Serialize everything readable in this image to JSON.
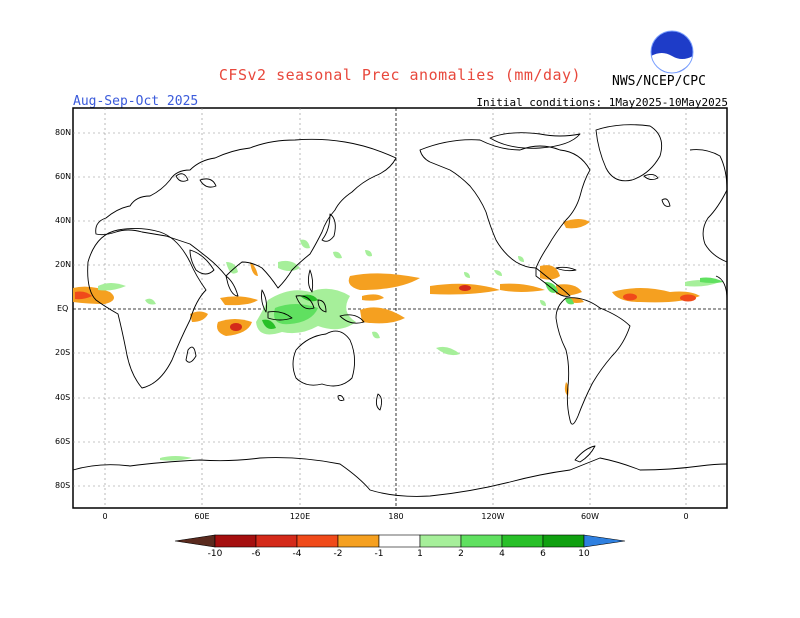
{
  "title": "CFSv2 seasonal Prec anomalies (mm/day)",
  "season": "Aug-Sep-Oct 2025",
  "initial_conditions": "Initial conditions: 1May2025-10May2025",
  "agency": "NWS/NCEP/CPC",
  "logo_text": "NOAA",
  "lat_labels": [
    "80N",
    "60N",
    "40N",
    "20N",
    "EQ",
    "20S",
    "40S",
    "60S",
    "80S"
  ],
  "lon_labels": [
    "0",
    "60E",
    "120E",
    "180",
    "120W",
    "60W",
    "0"
  ],
  "colorbar": {
    "labels": [
      "-10",
      "-6",
      "-4",
      "-2",
      "-1",
      "1",
      "2",
      "4",
      "6",
      "10"
    ],
    "colors": {
      "below_-10": "#5a2a1e",
      "-10_-6": "#a50f0f",
      "-6_-4": "#d42a1a",
      "-4_-2": "#f04a1a",
      "-2_-1": "#f5a020",
      "-1_1": "#ffffff",
      "1_2": "#a6ef9a",
      "2_4": "#60e060",
      "4_6": "#28c028",
      "6_10": "#10a010",
      "above_10": "#2f80e0"
    }
  },
  "map_colors": {
    "wet_light": "#a6ef9a",
    "wet_mid": "#60e060",
    "wet_dark": "#28c028",
    "dry_light": "#f5a020",
    "dry_mid": "#f04a1a",
    "dry_dark": "#d42a1a",
    "coast": "#000000",
    "grid": "#8a8a8a"
  }
}
